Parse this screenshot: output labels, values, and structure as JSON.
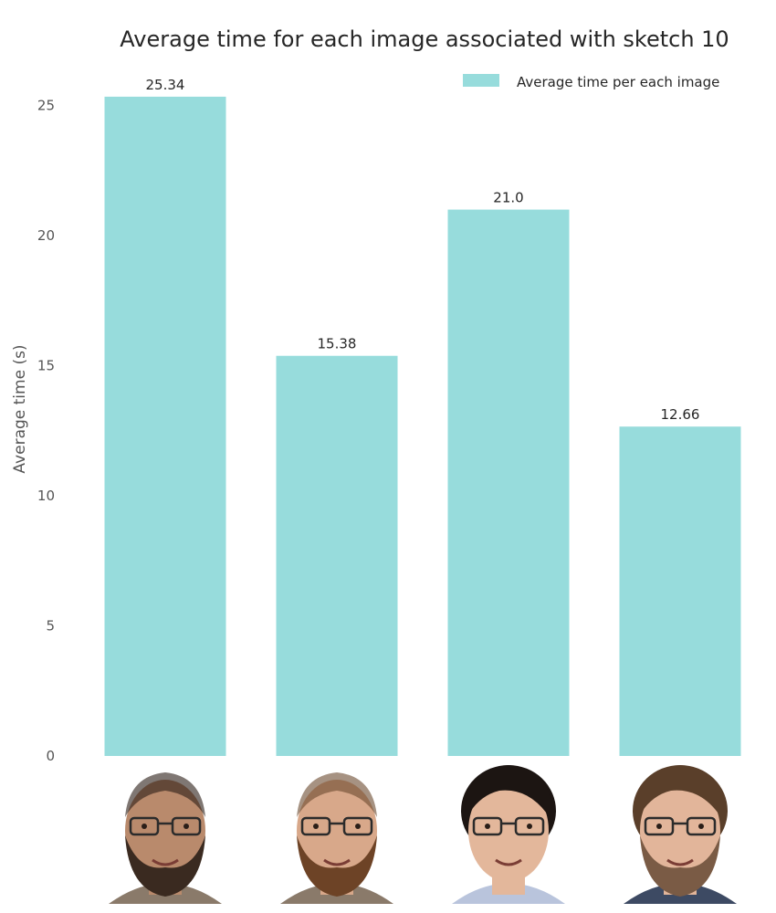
{
  "chart_data": {
    "type": "bar",
    "title": "Average time for each image associated with sketch 10",
    "xlabel": "",
    "ylabel": "Average time (s)",
    "ylim": [
      0,
      26.6
    ],
    "yticks": [
      "0",
      "5",
      "10",
      "15",
      "20",
      "25"
    ],
    "grid": false,
    "legend_position": "top-right",
    "categories": [
      "face-1",
      "face-2",
      "face-3",
      "face-4"
    ],
    "series": [
      {
        "name": "Average time per each image",
        "values": [
          25.34,
          15.38,
          21.0,
          12.66
        ],
        "labels": [
          "25.34",
          "15.38",
          "21.0",
          "12.66"
        ]
      }
    ],
    "x_tick_type": "face-photo"
  },
  "colors": {
    "bar": "#97dcdc",
    "text": "#262626",
    "tick": "#555555"
  }
}
